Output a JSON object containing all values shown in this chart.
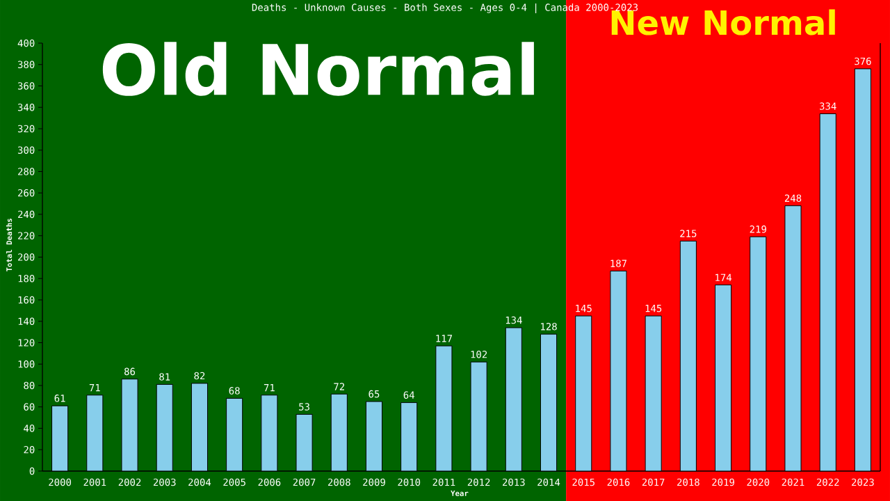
{
  "chart_data": {
    "type": "bar",
    "title": "Deaths - Unknown Causes - Both Sexes - Ages 0-4 | Canada 2000-2023",
    "xlabel": "Year",
    "ylabel": "Total Deaths",
    "categories": [
      "2000",
      "2001",
      "2002",
      "2003",
      "2004",
      "2005",
      "2006",
      "2007",
      "2008",
      "2009",
      "2010",
      "2011",
      "2012",
      "2013",
      "2014",
      "2015",
      "2016",
      "2017",
      "2018",
      "2019",
      "2020",
      "2021",
      "2022",
      "2023"
    ],
    "values": [
      61,
      71,
      86,
      81,
      82,
      68,
      71,
      53,
      72,
      65,
      64,
      117,
      102,
      134,
      128,
      145,
      187,
      145,
      215,
      174,
      219,
      248,
      334,
      376
    ],
    "color": "#87ceeb",
    "ylim": [
      0,
      400
    ],
    "yticks": [
      0,
      20,
      40,
      60,
      80,
      100,
      120,
      140,
      160,
      180,
      200,
      220,
      240,
      260,
      280,
      300,
      320,
      340,
      360,
      380,
      400
    ],
    "data_labels": true,
    "bands": [
      {
        "axis": "x",
        "from": "2000",
        "to": "2014",
        "label": "Old Normal",
        "color": "#006400"
      },
      {
        "axis": "x",
        "from": "2015",
        "to": "2023",
        "label": "New Normal",
        "color": "#ff0000"
      }
    ]
  }
}
